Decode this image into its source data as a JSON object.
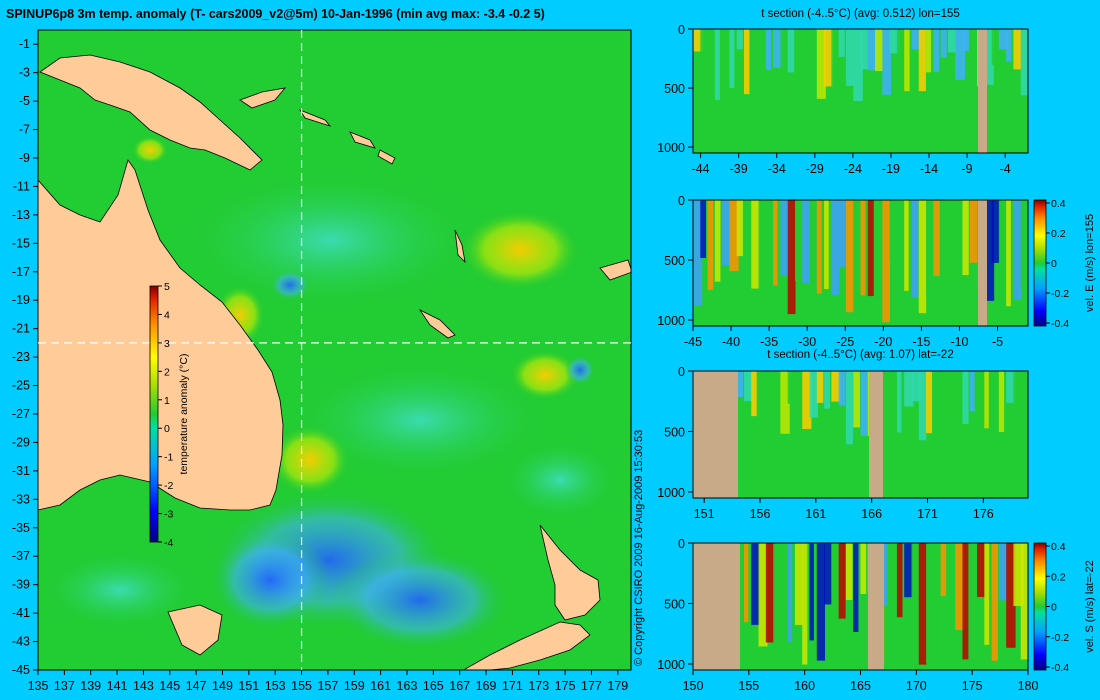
{
  "map": {
    "title": "SPINUP6p8 3m temp. anomaly (T- cars2009_v2@5m) 10-Jan-1996 (min avg max: -3.4 -0.2 5)",
    "x_ticks": [
      "135",
      "137",
      "139",
      "141",
      "143",
      "145",
      "147",
      "149",
      "151",
      "153",
      "155",
      "157",
      "159",
      "161",
      "163",
      "165",
      "167",
      "169",
      "171",
      "173",
      "175",
      "177",
      "179"
    ],
    "y_ticks": [
      "-1",
      "-3",
      "-5",
      "-7",
      "-9",
      "-11",
      "-13",
      "-15",
      "-17",
      "-19",
      "-21",
      "-23",
      "-25",
      "-27",
      "-29",
      "-31",
      "-33",
      "-35",
      "-37",
      "-39",
      "-41",
      "-43",
      "-45"
    ],
    "colorbar": {
      "label": "temperature anomaly (°C)",
      "ticks": [
        "5",
        "4",
        "3",
        "2",
        "1",
        "0",
        "-1",
        "-2",
        "-3",
        "-4"
      ]
    },
    "crosshair": {
      "lon": 155,
      "lat": -22
    },
    "colors": {
      "ocean": "#22cc33",
      "land": "#ffcc99"
    }
  },
  "copyright": "© Copyright CSIRO 2009   16-Aug-2009 15:30:53",
  "panels": [
    {
      "title": "t section (-4..5°C) (avg: 0.512) lon=155",
      "x_ticks": [
        "-44",
        "-39",
        "-34",
        "-29",
        "-24",
        "-19",
        "-14",
        "-9",
        "-4"
      ],
      "y_ticks": [
        "0",
        "500",
        "1000"
      ],
      "colorbar": null
    },
    {
      "title": "",
      "x_ticks": [
        "-45",
        "-40",
        "-35",
        "-30",
        "-25",
        "-20",
        "-15",
        "-10",
        "-5"
      ],
      "y_ticks": [
        "0",
        "500",
        "1000"
      ],
      "colorbar": {
        "label": "vel. E (m/s) lon=155",
        "ticks": [
          "0.4",
          "0.2",
          "0",
          "-0.2",
          "-0.4"
        ]
      }
    },
    {
      "title": "t section (-4..5°C) (avg: 1.07) lat=-22",
      "x_ticks": [
        "151",
        "156",
        "161",
        "166",
        "171",
        "176"
      ],
      "y_ticks": [
        "0",
        "500",
        "1000"
      ],
      "colorbar": null
    },
    {
      "title": "",
      "x_ticks": [
        "150",
        "155",
        "160",
        "165",
        "170",
        "175",
        "180"
      ],
      "y_ticks": [
        "0",
        "500",
        "1000"
      ],
      "colorbar": {
        "label": "vel. S (m/s) lat=-22",
        "ticks": [
          "0.4",
          "0.2",
          "0",
          "-0.2",
          "-0.4"
        ]
      }
    }
  ],
  "chart_data": [
    {
      "type": "heatmap",
      "title": "SPINUP6p8 3m temp. anomaly (T- cars2009_v2@5m) 10-Jan-1996 (min avg max: -3.4 -0.2 5)",
      "x_range": [
        135,
        180
      ],
      "y_range": [
        -45,
        0
      ],
      "value_range": [
        -4,
        5
      ],
      "colorbar_label": "temperature anomaly (°C)",
      "stats": {
        "min": -3.4,
        "avg": -0.2,
        "max": 5
      }
    },
    {
      "type": "heatmap",
      "title": "t section (-4..5°C) (avg: 0.512) lon=155",
      "x_range": [
        -45,
        -1
      ],
      "y_range": [
        1050,
        0
      ],
      "value_range": [
        -4,
        5
      ],
      "stats": {
        "avg": 0.512
      }
    },
    {
      "type": "heatmap",
      "title": "",
      "x_range": [
        -45,
        -1
      ],
      "y_range": [
        1050,
        0
      ],
      "value_range": [
        -0.4,
        0.4
      ],
      "colorbar_label": "vel. E (m/s) lon=155"
    },
    {
      "type": "heatmap",
      "title": "t section (-4..5°C) (avg: 1.07) lat=-22",
      "x_range": [
        150,
        180
      ],
      "y_range": [
        1050,
        0
      ],
      "value_range": [
        -4,
        5
      ],
      "stats": {
        "avg": 1.07
      }
    },
    {
      "type": "heatmap",
      "title": "",
      "x_range": [
        150,
        180
      ],
      "y_range": [
        1050,
        0
      ],
      "value_range": [
        -0.4,
        0.4
      ],
      "colorbar_label": "vel. S (m/s) lat=-22"
    }
  ]
}
